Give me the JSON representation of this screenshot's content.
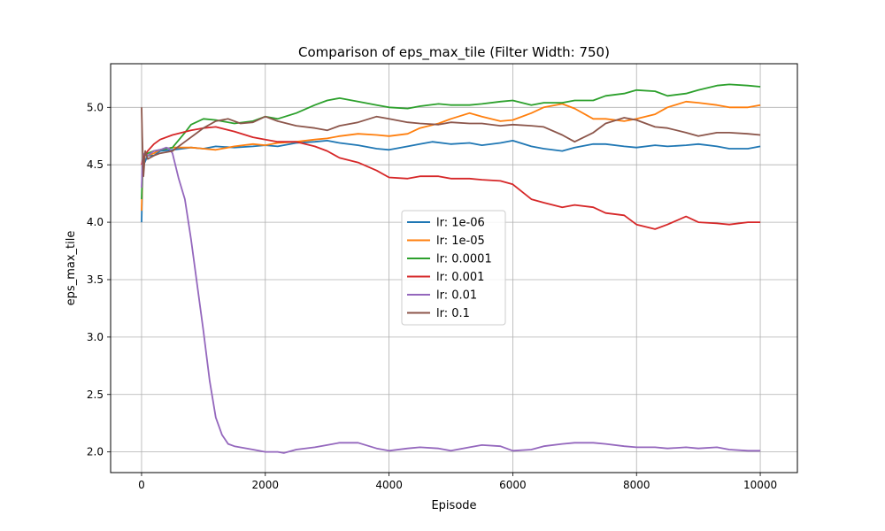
{
  "chart_data": {
    "type": "line",
    "title": "Comparison of eps_max_tile (Filter Width: 750)",
    "xlabel": "Episode",
    "ylabel": "eps_max_tile",
    "xlim": [
      -500,
      10600
    ],
    "ylim": [
      1.82,
      5.38
    ],
    "xticks": [
      0,
      2000,
      4000,
      6000,
      8000,
      10000
    ],
    "yticks": [
      2.0,
      2.5,
      3.0,
      3.5,
      4.0,
      4.5,
      5.0
    ],
    "grid": true,
    "legend_position": "center",
    "series": [
      {
        "name": "lr: 1e-06",
        "color": "#1f77b4",
        "x": [
          0,
          20,
          50,
          100,
          200,
          300,
          500,
          800,
          1000,
          1200,
          1500,
          1800,
          2000,
          2200,
          2500,
          2800,
          3000,
          3200,
          3500,
          3800,
          4000,
          4300,
          4500,
          4700,
          5000,
          5300,
          5500,
          5800,
          6000,
          6300,
          6500,
          6800,
          7000,
          7300,
          7500,
          7800,
          8000,
          8300,
          8500,
          8800,
          9000,
          9300,
          9500,
          9800,
          10000
        ],
        "y": [
          4.0,
          4.58,
          4.52,
          4.58,
          4.58,
          4.62,
          4.63,
          4.65,
          4.64,
          4.66,
          4.65,
          4.66,
          4.67,
          4.66,
          4.69,
          4.7,
          4.71,
          4.69,
          4.67,
          4.64,
          4.63,
          4.66,
          4.68,
          4.7,
          4.68,
          4.69,
          4.67,
          4.69,
          4.71,
          4.66,
          4.64,
          4.62,
          4.65,
          4.68,
          4.68,
          4.66,
          4.65,
          4.67,
          4.66,
          4.67,
          4.68,
          4.66,
          4.64,
          4.64,
          4.66
        ]
      },
      {
        "name": "lr: 1e-05",
        "color": "#ff7f0e",
        "x": [
          0,
          20,
          50,
          100,
          200,
          300,
          500,
          800,
          1000,
          1200,
          1500,
          1800,
          2000,
          2200,
          2500,
          2800,
          3000,
          3200,
          3500,
          3800,
          4000,
          4300,
          4500,
          4800,
          5000,
          5300,
          5500,
          5800,
          6000,
          6300,
          6500,
          6800,
          7000,
          7300,
          7500,
          7800,
          8000,
          8300,
          8500,
          8800,
          9000,
          9300,
          9500,
          9800,
          10000
        ],
        "y": [
          4.1,
          4.55,
          4.6,
          4.58,
          4.6,
          4.63,
          4.65,
          4.65,
          4.64,
          4.63,
          4.66,
          4.68,
          4.67,
          4.69,
          4.7,
          4.72,
          4.73,
          4.75,
          4.77,
          4.76,
          4.75,
          4.77,
          4.82,
          4.86,
          4.9,
          4.95,
          4.92,
          4.88,
          4.89,
          4.95,
          5.0,
          5.03,
          4.99,
          4.9,
          4.9,
          4.88,
          4.9,
          4.94,
          5.0,
          5.05,
          5.04,
          5.02,
          5.0,
          5.0,
          5.02
        ]
      },
      {
        "name": "lr: 0.0001",
        "color": "#2ca02c",
        "x": [
          0,
          20,
          50,
          100,
          200,
          300,
          500,
          700,
          800,
          1000,
          1200,
          1500,
          1800,
          2000,
          2200,
          2500,
          2800,
          3000,
          3200,
          3500,
          3800,
          4000,
          4300,
          4500,
          4800,
          5000,
          5300,
          5500,
          5800,
          6000,
          6300,
          6500,
          6800,
          7000,
          7300,
          7500,
          7800,
          8000,
          8300,
          8500,
          8800,
          9000,
          9300,
          9500,
          9800,
          10000
        ],
        "y": [
          4.2,
          4.55,
          4.58,
          4.6,
          4.62,
          4.63,
          4.65,
          4.78,
          4.85,
          4.9,
          4.89,
          4.86,
          4.88,
          4.92,
          4.9,
          4.95,
          5.02,
          5.06,
          5.08,
          5.05,
          5.02,
          5.0,
          4.99,
          5.01,
          5.03,
          5.02,
          5.02,
          5.03,
          5.05,
          5.06,
          5.02,
          5.04,
          5.04,
          5.06,
          5.06,
          5.1,
          5.12,
          5.15,
          5.14,
          5.1,
          5.12,
          5.15,
          5.19,
          5.2,
          5.19,
          5.18
        ]
      },
      {
        "name": "lr: 0.001",
        "color": "#d62728",
        "x": [
          0,
          20,
          50,
          100,
          200,
          300,
          500,
          800,
          1000,
          1200,
          1500,
          1800,
          2000,
          2200,
          2500,
          2800,
          3000,
          3200,
          3500,
          3800,
          4000,
          4300,
          4500,
          4800,
          5000,
          5300,
          5500,
          5800,
          6000,
          6300,
          6500,
          6800,
          7000,
          7300,
          7500,
          7800,
          8000,
          8300,
          8500,
          8800,
          9000,
          9300,
          9500,
          9800,
          10000
        ],
        "y": [
          4.5,
          4.55,
          4.58,
          4.62,
          4.68,
          4.72,
          4.76,
          4.8,
          4.82,
          4.83,
          4.79,
          4.74,
          4.72,
          4.7,
          4.7,
          4.66,
          4.62,
          4.56,
          4.52,
          4.45,
          4.39,
          4.38,
          4.4,
          4.4,
          4.38,
          4.38,
          4.37,
          4.36,
          4.33,
          4.2,
          4.17,
          4.13,
          4.15,
          4.13,
          4.08,
          4.06,
          3.98,
          3.94,
          3.98,
          4.05,
          4.0,
          3.99,
          3.98,
          4.0,
          4.0
        ]
      },
      {
        "name": "lr: 0.01",
        "color": "#9467bd",
        "x": [
          0,
          20,
          50,
          100,
          200,
          300,
          400,
          450,
          500,
          600,
          700,
          800,
          900,
          1000,
          1100,
          1200,
          1300,
          1400,
          1500,
          1800,
          2000,
          2200,
          2300,
          2500,
          2800,
          3000,
          3200,
          3500,
          3800,
          4000,
          4300,
          4500,
          4800,
          5000,
          5300,
          5500,
          5800,
          6000,
          6300,
          6500,
          6800,
          7000,
          7300,
          7500,
          7800,
          8000,
          8300,
          8500,
          8800,
          9000,
          9300,
          9500,
          9800,
          10000
        ],
        "y": [
          4.3,
          4.58,
          4.6,
          4.58,
          4.62,
          4.63,
          4.65,
          4.64,
          4.6,
          4.38,
          4.2,
          3.85,
          3.45,
          3.05,
          2.62,
          2.3,
          2.15,
          2.07,
          2.05,
          2.02,
          2.0,
          2.0,
          1.99,
          2.02,
          2.04,
          2.06,
          2.08,
          2.08,
          2.03,
          2.01,
          2.03,
          2.04,
          2.03,
          2.01,
          2.04,
          2.06,
          2.05,
          2.01,
          2.02,
          2.05,
          2.07,
          2.08,
          2.08,
          2.07,
          2.05,
          2.04,
          2.04,
          2.03,
          2.04,
          2.03,
          2.04,
          2.02,
          2.01,
          2.01
        ]
      },
      {
        "name": "lr: 0.1",
        "color": "#8c564b",
        "x": [
          0,
          10,
          30,
          60,
          100,
          200,
          300,
          500,
          700,
          900,
          1000,
          1200,
          1400,
          1600,
          1800,
          2000,
          2200,
          2500,
          2800,
          3000,
          3200,
          3500,
          3800,
          4000,
          4300,
          4500,
          4800,
          5000,
          5300,
          5500,
          5800,
          6000,
          6300,
          6500,
          6800,
          7000,
          7300,
          7500,
          7800,
          8000,
          8300,
          8500,
          8800,
          9000,
          9300,
          9500,
          9800,
          10000
        ],
        "y": [
          5.0,
          4.75,
          4.4,
          4.62,
          4.55,
          4.58,
          4.6,
          4.62,
          4.7,
          4.78,
          4.82,
          4.88,
          4.9,
          4.86,
          4.87,
          4.92,
          4.88,
          4.84,
          4.82,
          4.8,
          4.84,
          4.87,
          4.92,
          4.9,
          4.87,
          4.86,
          4.85,
          4.87,
          4.86,
          4.86,
          4.84,
          4.85,
          4.84,
          4.83,
          4.76,
          4.7,
          4.78,
          4.86,
          4.91,
          4.89,
          4.83,
          4.82,
          4.78,
          4.75,
          4.78,
          4.78,
          4.77,
          4.76
        ]
      }
    ]
  }
}
